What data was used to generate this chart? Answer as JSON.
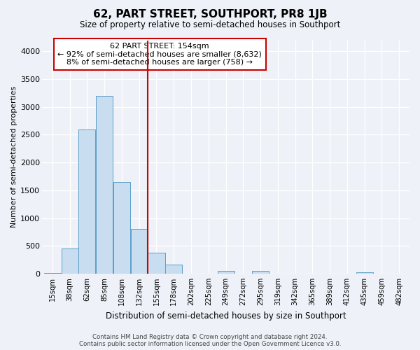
{
  "title": "62, PART STREET, SOUTHPORT, PR8 1JB",
  "subtitle": "Size of property relative to semi-detached houses in Southport",
  "xlabel": "Distribution of semi-detached houses by size in Southport",
  "ylabel": "Number of semi-detached properties",
  "footer_line1": "Contains HM Land Registry data © Crown copyright and database right 2024.",
  "footer_line2": "Contains public sector information licensed under the Open Government Licence v3.0.",
  "annotation_line1": "62 PART STREET: 154sqm",
  "annotation_line2": "← 92% of semi-detached houses are smaller (8,632)",
  "annotation_line3": "8% of semi-detached houses are larger (758) →",
  "bar_color": "#c8ddf0",
  "bar_edge_color": "#5b9ec9",
  "vline_color": "#cc0000",
  "background_color": "#eef2f8",
  "annotation_box_facecolor": "white",
  "annotation_box_edgecolor": "#cc0000",
  "categories": [
    "15sqm",
    "38sqm",
    "62sqm",
    "85sqm",
    "108sqm",
    "132sqm",
    "155sqm",
    "178sqm",
    "202sqm",
    "225sqm",
    "249sqm",
    "272sqm",
    "295sqm",
    "319sqm",
    "342sqm",
    "365sqm",
    "389sqm",
    "412sqm",
    "435sqm",
    "459sqm",
    "482sqm"
  ],
  "values": [
    15,
    455,
    2600,
    3200,
    1650,
    810,
    380,
    160,
    0,
    0,
    55,
    0,
    50,
    0,
    0,
    0,
    0,
    0,
    30,
    0,
    0
  ],
  "vline_index": 6,
  "ylim": [
    0,
    4200
  ],
  "yticks": [
    0,
    500,
    1000,
    1500,
    2000,
    2500,
    3000,
    3500,
    4000
  ]
}
